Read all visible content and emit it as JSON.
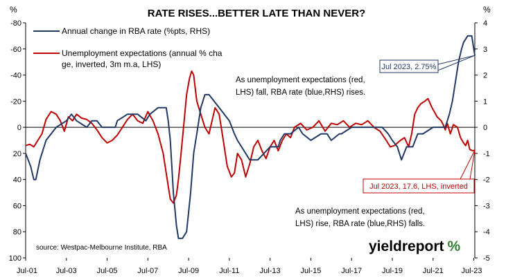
{
  "chart_data": {
    "type": "line",
    "title": "RATE RISES...BETTER LATE THAN NEVER?",
    "left_unit": "%",
    "right_unit": "%",
    "left_axis": {
      "min": -80,
      "max": 100,
      "inverted": true,
      "ticks": [
        "-80",
        "-60",
        "-40",
        "-20",
        "0",
        "20",
        "40",
        "60",
        "80",
        "100"
      ]
    },
    "right_axis": {
      "min": -5,
      "max": 4,
      "ticks": [
        "4",
        "3",
        "2",
        "1",
        "0",
        "-1",
        "-2",
        "-3",
        "-4",
        "-5"
      ]
    },
    "x_axis": {
      "start": 2001.5,
      "end": 2023.55,
      "ticks": [
        "Jul-01",
        "Jul-03",
        "Jul-05",
        "Jul-07",
        "Jul-09",
        "Jul-11",
        "Jul-13",
        "Jul-15",
        "Jul-17",
        "Jul-19",
        "Jul-21",
        "Jul-23"
      ]
    },
    "grid": false,
    "series": [
      {
        "name": "Annual change in RBA rate (%pts, RHS)",
        "axis": "right",
        "color": "#1f3864",
        "points": [
          [
            2001.5,
            -1.0
          ],
          [
            2001.75,
            -1.5
          ],
          [
            2001.9,
            -2.0
          ],
          [
            2002.0,
            -2.0
          ],
          [
            2002.2,
            -1.25
          ],
          [
            2002.5,
            -0.5
          ],
          [
            2002.75,
            -0.25
          ],
          [
            2003.0,
            0.0
          ],
          [
            2003.5,
            0.25
          ],
          [
            2003.75,
            0.5
          ],
          [
            2004.0,
            0.25
          ],
          [
            2004.5,
            0.0
          ],
          [
            2004.75,
            0.25
          ],
          [
            2005.0,
            0.25
          ],
          [
            2005.25,
            0.0
          ],
          [
            2005.5,
            0.0
          ],
          [
            2005.9,
            0.0
          ],
          [
            2006.0,
            0.25
          ],
          [
            2006.5,
            0.5
          ],
          [
            2007.0,
            0.5
          ],
          [
            2007.4,
            0.25
          ],
          [
            2007.6,
            0.5
          ],
          [
            2008.0,
            0.75
          ],
          [
            2008.4,
            0.75
          ],
          [
            2008.5,
            0.25
          ],
          [
            2008.6,
            -0.5
          ],
          [
            2008.75,
            -2.5
          ],
          [
            2008.9,
            -3.75
          ],
          [
            2009.0,
            -4.25
          ],
          [
            2009.2,
            -4.25
          ],
          [
            2009.4,
            -4.0
          ],
          [
            2009.6,
            -2.5
          ],
          [
            2009.75,
            -1.0
          ],
          [
            2009.9,
            -0.25
          ],
          [
            2010.1,
            0.75
          ],
          [
            2010.3,
            1.25
          ],
          [
            2010.5,
            1.25
          ],
          [
            2010.75,
            1.0
          ],
          [
            2011.0,
            0.75
          ],
          [
            2011.25,
            0.5
          ],
          [
            2011.5,
            0.25
          ],
          [
            2011.75,
            -0.25
          ],
          [
            2011.9,
            -0.5
          ],
          [
            2012.1,
            -0.75
          ],
          [
            2012.5,
            -1.25
          ],
          [
            2012.9,
            -1.25
          ],
          [
            2013.2,
            -1.0
          ],
          [
            2013.5,
            -0.75
          ],
          [
            2013.9,
            -0.75
          ],
          [
            2014.0,
            -0.5
          ],
          [
            2014.2,
            -0.25
          ],
          [
            2014.5,
            -0.25
          ],
          [
            2014.9,
            0.0
          ],
          [
            2015.1,
            -0.25
          ],
          [
            2015.5,
            -0.5
          ],
          [
            2016.0,
            -0.25
          ],
          [
            2016.3,
            -0.25
          ],
          [
            2016.5,
            -0.5
          ],
          [
            2016.9,
            -0.25
          ],
          [
            2017.0,
            -0.25
          ],
          [
            2017.5,
            0.0
          ],
          [
            2018.0,
            0.0
          ],
          [
            2018.5,
            0.0
          ],
          [
            2019.0,
            0.0
          ],
          [
            2019.3,
            -0.25
          ],
          [
            2019.5,
            -0.5
          ],
          [
            2019.75,
            -0.75
          ],
          [
            2019.95,
            -1.25
          ],
          [
            2020.2,
            -0.75
          ],
          [
            2020.5,
            -0.75
          ],
          [
            2020.75,
            -0.25
          ],
          [
            2021.0,
            -0.25
          ],
          [
            2021.5,
            0.0
          ],
          [
            2021.9,
            0.0
          ],
          [
            2022.1,
            0.0
          ],
          [
            2022.3,
            0.5
          ],
          [
            2022.45,
            1.0
          ],
          [
            2022.6,
            1.75
          ],
          [
            2022.75,
            2.5
          ],
          [
            2022.9,
            3.0
          ],
          [
            2023.0,
            3.25
          ],
          [
            2023.2,
            3.5
          ],
          [
            2023.4,
            3.5
          ],
          [
            2023.55,
            2.75
          ]
        ]
      },
      {
        "name": "Unemployment expectations (annual % change, inverted, 3m m.a, LHS)",
        "axis": "left",
        "color": "#c00000",
        "points": [
          [
            2001.5,
            14
          ],
          [
            2001.7,
            13
          ],
          [
            2001.9,
            15
          ],
          [
            2002.1,
            10
          ],
          [
            2002.3,
            5
          ],
          [
            2002.5,
            -6
          ],
          [
            2002.75,
            -12
          ],
          [
            2003.0,
            -10
          ],
          [
            2003.2,
            -5
          ],
          [
            2003.4,
            3
          ],
          [
            2003.6,
            -8
          ],
          [
            2003.8,
            -5
          ],
          [
            2004.0,
            -10
          ],
          [
            2004.25,
            -7
          ],
          [
            2004.5,
            -6
          ],
          [
            2004.75,
            -3
          ],
          [
            2005.0,
            2
          ],
          [
            2005.25,
            8
          ],
          [
            2005.5,
            12
          ],
          [
            2005.75,
            10
          ],
          [
            2006.0,
            6
          ],
          [
            2006.25,
            0
          ],
          [
            2006.5,
            -6
          ],
          [
            2006.75,
            -10
          ],
          [
            2007.0,
            -5
          ],
          [
            2007.25,
            -3
          ],
          [
            2007.5,
            -12
          ],
          [
            2007.75,
            -5
          ],
          [
            2008.0,
            5
          ],
          [
            2008.25,
            20
          ],
          [
            2008.5,
            45
          ],
          [
            2008.6,
            55
          ],
          [
            2008.75,
            58
          ],
          [
            2008.9,
            52
          ],
          [
            2009.0,
            40
          ],
          [
            2009.1,
            25
          ],
          [
            2009.25,
            0
          ],
          [
            2009.4,
            -25
          ],
          [
            2009.55,
            -38
          ],
          [
            2009.65,
            -43
          ],
          [
            2009.75,
            -40
          ],
          [
            2009.9,
            -20
          ],
          [
            2010.1,
            -10
          ],
          [
            2010.3,
            0
          ],
          [
            2010.5,
            5
          ],
          [
            2010.65,
            -5
          ],
          [
            2010.8,
            -15
          ],
          [
            2011.0,
            -10
          ],
          [
            2011.2,
            10
          ],
          [
            2011.4,
            30
          ],
          [
            2011.6,
            38
          ],
          [
            2011.75,
            35
          ],
          [
            2011.9,
            20
          ],
          [
            2012.1,
            25
          ],
          [
            2012.3,
            38
          ],
          [
            2012.5,
            28
          ],
          [
            2012.7,
            15
          ],
          [
            2012.9,
            10
          ],
          [
            2013.1,
            18
          ],
          [
            2013.3,
            24
          ],
          [
            2013.5,
            15
          ],
          [
            2013.7,
            10
          ],
          [
            2013.9,
            18
          ],
          [
            2014.1,
            10
          ],
          [
            2014.3,
            5
          ],
          [
            2014.5,
            8
          ],
          [
            2014.7,
            0
          ],
          [
            2015.0,
            -3
          ],
          [
            2015.3,
            2
          ],
          [
            2015.6,
            0
          ],
          [
            2015.9,
            -5
          ],
          [
            2016.2,
            3
          ],
          [
            2016.5,
            -3
          ],
          [
            2016.8,
            -2
          ],
          [
            2017.1,
            -5
          ],
          [
            2017.4,
            0
          ],
          [
            2017.7,
            -3
          ],
          [
            2018.0,
            -2
          ],
          [
            2018.3,
            -5
          ],
          [
            2018.6,
            0
          ],
          [
            2018.9,
            3
          ],
          [
            2019.2,
            10
          ],
          [
            2019.4,
            15
          ],
          [
            2019.6,
            14
          ],
          [
            2019.9,
            10
          ],
          [
            2020.1,
            8
          ],
          [
            2020.3,
            15
          ],
          [
            2020.45,
            5
          ],
          [
            2020.6,
            -10
          ],
          [
            2020.75,
            -15
          ],
          [
            2020.9,
            -18
          ],
          [
            2021.1,
            -20
          ],
          [
            2021.25,
            -22
          ],
          [
            2021.45,
            -15
          ],
          [
            2021.7,
            -8
          ],
          [
            2021.9,
            -5
          ],
          [
            2022.0,
            -2
          ],
          [
            2022.1,
            2
          ],
          [
            2022.2,
            -3
          ],
          [
            2022.35,
            5
          ],
          [
            2022.5,
            -2
          ],
          [
            2022.7,
            0
          ],
          [
            2022.85,
            8
          ],
          [
            2023.0,
            12
          ],
          [
            2023.1,
            14
          ],
          [
            2023.2,
            10
          ],
          [
            2023.3,
            17
          ],
          [
            2023.45,
            18
          ],
          [
            2023.55,
            17.6
          ]
        ]
      }
    ],
    "callouts": [
      {
        "text": "Jul 2023, 2.75%",
        "series": "blue"
      },
      {
        "text": "Jul 2023, 17.6, LHS, inverted",
        "series": "red"
      }
    ],
    "annotations": [
      {
        "lines": [
          "As unemployment expectations (red,",
          "LHS) fall, RBA rate (blue,RHS) rises."
        ]
      },
      {
        "lines": [
          "As unemployment expectations (red,",
          "LHS) rise, RBA rate (blue,RHS) falls."
        ]
      }
    ],
    "source": "source: Westpac-Melbourne Institute, RBA",
    "brand": {
      "word": "yieldreport",
      "symbol": "%"
    }
  }
}
